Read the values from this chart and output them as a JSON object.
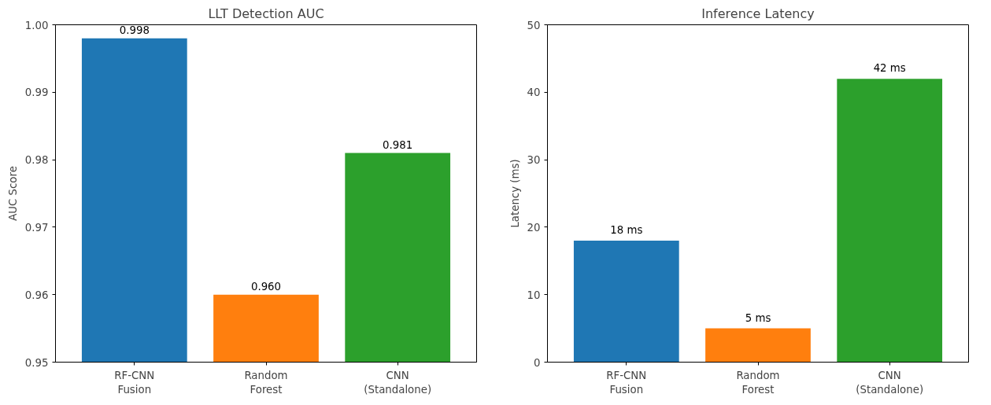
{
  "chart_data": [
    {
      "type": "bar",
      "title": "LLT Detection AUC",
      "ylabel": "AUC Score",
      "categories": [
        "RF-CNN\nFusion",
        "Random\nForest",
        "CNN\n(Standalone)"
      ],
      "values": [
        0.998,
        0.96,
        0.981
      ],
      "colors": [
        "#1f77b4",
        "#ff7f0e",
        "#2ca02c"
      ],
      "value_labels": [
        "0.998",
        "0.960",
        "0.981"
      ],
      "ylim": [
        0.95,
        1.0
      ],
      "yticks": [
        0.95,
        0.96,
        0.97,
        0.98,
        0.99,
        {
          "value": 1.0,
          "label": "1.00"
        }
      ],
      "grid": false
    },
    {
      "type": "bar",
      "title": "Inference Latency",
      "ylabel": "Latency (ms)",
      "categories": [
        "RF-CNN\nFusion",
        "Random\nForest",
        "CNN\n(Standalone)"
      ],
      "values": [
        18,
        5,
        42
      ],
      "colors": [
        "#1f77b4",
        "#ff7f0e",
        "#2ca02c"
      ],
      "value_labels": [
        "18 ms",
        "5 ms",
        "42 ms"
      ],
      "ylim": [
        0,
        50
      ],
      "yticks": [
        0,
        10,
        20,
        30,
        40,
        50
      ],
      "grid": false
    }
  ]
}
